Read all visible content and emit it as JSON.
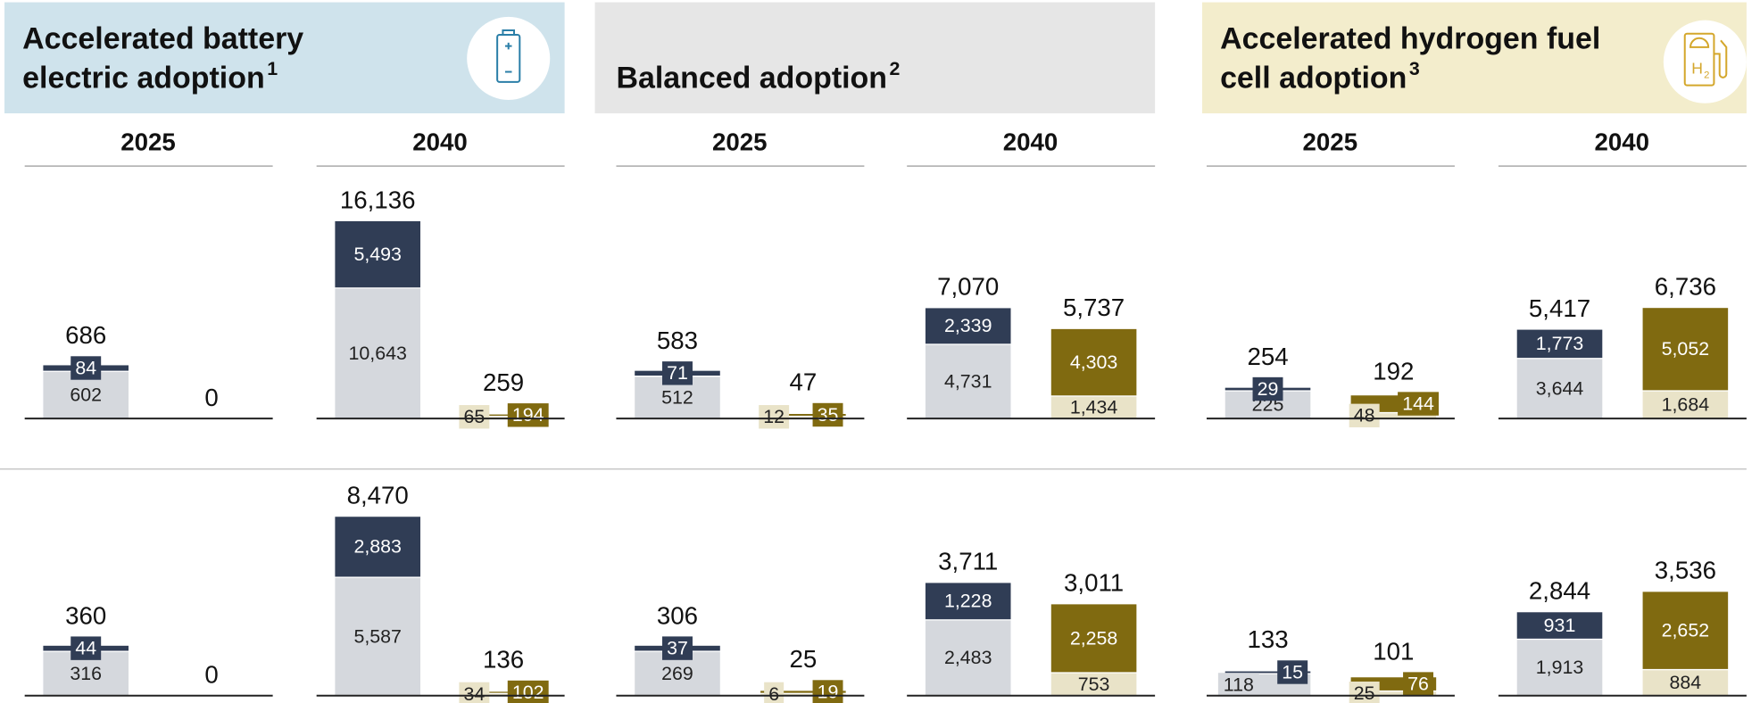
{
  "chart_data": [
    {
      "type": "bar",
      "title_lines": [
        "Accelerated battery",
        "electric adoption"
      ],
      "footnote": "1",
      "header_color": "#cfe3ec",
      "colors": [
        [
          "#d5d8dd",
          "#303d55"
        ],
        [
          "#e9e3c8",
          "#806a10"
        ]
      ],
      "panels": [
        {
          "year": "2025",
          "rows": [
            {
              "ylim": [
                0,
                2860
              ],
              "bars": [
                {
                  "total": 686,
                  "segments": [
                    602,
                    84
                  ]
                },
                {
                  "total": 0,
                  "segments": []
                }
              ]
            },
            {
              "ylim": [
                0,
                1600
              ],
              "bars": [
                {
                  "total": 360,
                  "segments": [
                    316,
                    44
                  ]
                },
                {
                  "total": 0,
                  "segments": []
                }
              ]
            }
          ]
        },
        {
          "year": "2040",
          "rows": [
            {
              "ylim": [
                0,
                18300
              ],
              "bars": [
                {
                  "total": {
                    "value": 16136,
                    "label": "16,136"
                  },
                  "segments": [
                    {
                      "value": 10643,
                      "label": "10,643"
                    },
                    {
                      "value": 5493,
                      "label": "5,493"
                    }
                  ]
                },
                {
                  "total": 259,
                  "segments": [
                    65,
                    194
                  ]
                }
              ]
            },
            {
              "ylim": [
                0,
                10590
              ],
              "bars": [
                {
                  "total": {
                    "value": 8470,
                    "label": "8,470"
                  },
                  "segments": [
                    {
                      "value": 5587,
                      "label": "5,587"
                    },
                    {
                      "value": 2883,
                      "label": "2,883"
                    }
                  ]
                },
                {
                  "total": 136,
                  "segments": [
                    34,
                    102
                  ]
                }
              ]
            }
          ]
        }
      ]
    },
    {
      "type": "bar",
      "title_lines": [
        "Balanced adoption"
      ],
      "footnote": "2",
      "header_color": "#e6e6e6",
      "colors": [
        [
          "#d5d8dd",
          "#303d55"
        ],
        [
          "#e9e3c8",
          "#806a10"
        ]
      ],
      "panels": [
        {
          "year": "2025",
          "rows": [
            {
              "ylim": [
                0,
                2710
              ],
              "bars": [
                {
                  "total": 583,
                  "segments": [
                    512,
                    71
                  ]
                },
                {
                  "total": 47,
                  "segments": [
                    12,
                    35
                  ]
                }
              ]
            },
            {
              "ylim": [
                0,
                1360
              ],
              "bars": [
                {
                  "total": 306,
                  "segments": [
                    269,
                    37
                  ]
                },
                {
                  "total": 25,
                  "segments": [
                    6,
                    19
                  ]
                }
              ]
            }
          ]
        },
        {
          "year": "2040",
          "rows": [
            {
              "ylim": [
                0,
                14300
              ],
              "bars": [
                {
                  "total": {
                    "value": 7070,
                    "label": "7,070"
                  },
                  "segments": [
                    {
                      "value": 4731,
                      "label": "4,731"
                    },
                    {
                      "value": 2339,
                      "label": "2,339"
                    }
                  ]
                },
                {
                  "total": {
                    "value": 5737,
                    "label": "5,737"
                  },
                  "segments": [
                    {
                      "value": 1434,
                      "label": "1,434"
                    },
                    {
                      "value": 4303,
                      "label": "4,303"
                    }
                  ]
                }
              ]
            },
            {
              "ylim": [
                0,
                7350
              ],
              "bars": [
                {
                  "total": {
                    "value": 3711,
                    "label": "3,711"
                  },
                  "segments": [
                    {
                      "value": 2483,
                      "label": "2,483"
                    },
                    {
                      "value": 1228,
                      "label": "1,228"
                    }
                  ]
                },
                {
                  "total": {
                    "value": 3011,
                    "label": "3,011"
                  },
                  "segments": [
                    753,
                    {
                      "value": 2258,
                      "label": "2,258"
                    }
                  ]
                }
              ]
            }
          ]
        }
      ]
    },
    {
      "type": "bar",
      "title_lines": [
        "Accelerated hydrogen fuel",
        "cell adoption"
      ],
      "footnote": "3",
      "header_color": "#f3edcc",
      "colors": [
        [
          "#d5d8dd",
          "#303d55"
        ],
        [
          "#e9e3c8",
          "#806a10"
        ]
      ],
      "panels": [
        {
          "year": "2025",
          "rows": [
            {
              "ylim": [
                0,
                1820
              ],
              "bars": [
                {
                  "total": 254,
                  "segments": [
                    225,
                    29
                  ]
                },
                {
                  "total": 192,
                  "segments": [
                    48,
                    144
                  ]
                }
              ]
            },
            {
              "ylim": [
                0,
                1200
              ],
              "bars": [
                {
                  "total": 133,
                  "segments": [
                    118,
                    15
                  ]
                },
                {
                  "total": 101,
                  "segments": [
                    25,
                    76
                  ]
                }
              ]
            }
          ]
        },
        {
          "year": "2040",
          "rows": [
            {
              "ylim": [
                0,
                13600
              ],
              "bars": [
                {
                  "total": {
                    "value": 5417,
                    "label": "5,417"
                  },
                  "segments": [
                    {
                      "value": 3644,
                      "label": "3,644"
                    },
                    {
                      "value": 1773,
                      "label": "1,773"
                    }
                  ]
                },
                {
                  "total": {
                    "value": 6736,
                    "label": "6,736"
                  },
                  "segments": [
                    {
                      "value": 1684,
                      "label": "1,684"
                    },
                    {
                      "value": 5052,
                      "label": "5,052"
                    }
                  ]
                }
              ]
            },
            {
              "ylim": [
                0,
                7600
              ],
              "bars": [
                {
                  "total": {
                    "value": 2844,
                    "label": "2,844"
                  },
                  "segments": [
                    {
                      "value": 1913,
                      "label": "1,913"
                    },
                    931
                  ]
                },
                {
                  "total": {
                    "value": 3536,
                    "label": "3,536"
                  },
                  "segments": [
                    884,
                    {
                      "value": 2652,
                      "label": "2,652"
                    }
                  ]
                }
              ]
            }
          ]
        }
      ]
    }
  ]
}
